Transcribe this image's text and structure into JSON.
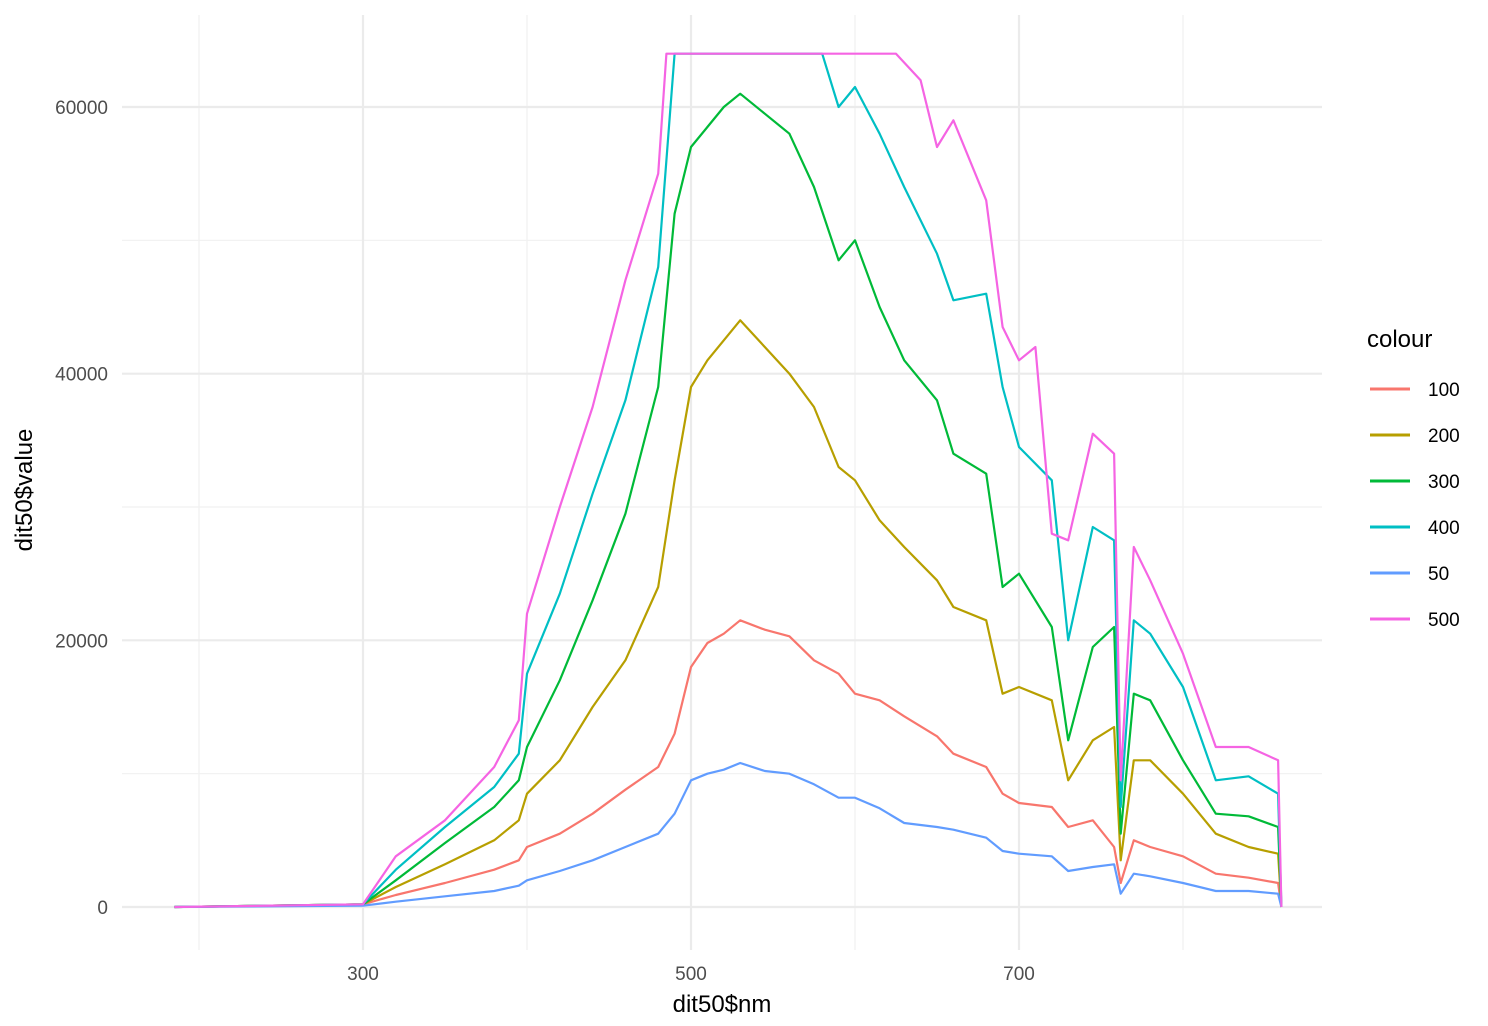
{
  "chart_data": {
    "type": "line",
    "title": "",
    "xlabel": "dit50$nm",
    "ylabel": "dit50$value",
    "xlim": [
      150,
      880
    ],
    "ylim": [
      -2000,
      65000
    ],
    "x_ticks": [
      300,
      500,
      700
    ],
    "y_ticks": [
      0,
      20000,
      40000,
      60000
    ],
    "x_ticks_labels": [
      "300",
      "500",
      "700"
    ],
    "y_ticks_labels": [
      "0",
      "20000",
      "40000",
      "60000"
    ],
    "grid": true,
    "legend_position": "right",
    "legend_title": "colour",
    "series": [
      {
        "name": "100",
        "color": "#F8766D",
        "points": [
          [
            185,
            0
          ],
          [
            300,
            200
          ],
          [
            320,
            900
          ],
          [
            350,
            1800
          ],
          [
            380,
            2800
          ],
          [
            395,
            3500
          ],
          [
            400,
            4500
          ],
          [
            420,
            5500
          ],
          [
            440,
            7000
          ],
          [
            460,
            8800
          ],
          [
            480,
            10500
          ],
          [
            490,
            13000
          ],
          [
            500,
            18000
          ],
          [
            510,
            19800
          ],
          [
            520,
            20500
          ],
          [
            530,
            21500
          ],
          [
            545,
            20800
          ],
          [
            560,
            20300
          ],
          [
            575,
            18500
          ],
          [
            590,
            17500
          ],
          [
            600,
            16000
          ],
          [
            615,
            15500
          ],
          [
            630,
            14300
          ],
          [
            650,
            12800
          ],
          [
            660,
            11500
          ],
          [
            680,
            10500
          ],
          [
            690,
            8500
          ],
          [
            700,
            7800
          ],
          [
            720,
            7500
          ],
          [
            730,
            6000
          ],
          [
            745,
            6500
          ],
          [
            758,
            4500
          ],
          [
            762,
            1800
          ],
          [
            770,
            5000
          ],
          [
            780,
            4500
          ],
          [
            800,
            3800
          ],
          [
            820,
            2500
          ],
          [
            840,
            2200
          ],
          [
            858,
            1800
          ],
          [
            860,
            0
          ]
        ]
      },
      {
        "name": "200",
        "color": "#B79F00",
        "points": [
          [
            185,
            0
          ],
          [
            300,
            200
          ],
          [
            320,
            1500
          ],
          [
            350,
            3200
          ],
          [
            380,
            5000
          ],
          [
            395,
            6500
          ],
          [
            400,
            8500
          ],
          [
            420,
            11000
          ],
          [
            440,
            15000
          ],
          [
            460,
            18500
          ],
          [
            480,
            24000
          ],
          [
            490,
            32000
          ],
          [
            500,
            39000
          ],
          [
            510,
            41000
          ],
          [
            520,
            42500
          ],
          [
            530,
            44000
          ],
          [
            545,
            42000
          ],
          [
            560,
            40000
          ],
          [
            575,
            37500
          ],
          [
            590,
            33000
          ],
          [
            600,
            32000
          ],
          [
            615,
            29000
          ],
          [
            630,
            27000
          ],
          [
            650,
            24500
          ],
          [
            660,
            22500
          ],
          [
            680,
            21500
          ],
          [
            690,
            16000
          ],
          [
            700,
            16500
          ],
          [
            720,
            15500
          ],
          [
            730,
            9500
          ],
          [
            745,
            12500
          ],
          [
            758,
            13500
          ],
          [
            762,
            3500
          ],
          [
            770,
            11000
          ],
          [
            780,
            11000
          ],
          [
            800,
            8500
          ],
          [
            820,
            5500
          ],
          [
            840,
            4500
          ],
          [
            858,
            4000
          ],
          [
            860,
            0
          ]
        ]
      },
      {
        "name": "300",
        "color": "#00BA38",
        "points": [
          [
            185,
            0
          ],
          [
            300,
            200
          ],
          [
            320,
            2000
          ],
          [
            350,
            4800
          ],
          [
            380,
            7500
          ],
          [
            395,
            9500
          ],
          [
            400,
            12000
          ],
          [
            420,
            17000
          ],
          [
            440,
            23000
          ],
          [
            460,
            29500
          ],
          [
            480,
            39000
          ],
          [
            490,
            52000
          ],
          [
            500,
            57000
          ],
          [
            510,
            58500
          ],
          [
            520,
            60000
          ],
          [
            530,
            61000
          ],
          [
            545,
            59500
          ],
          [
            560,
            58000
          ],
          [
            575,
            54000
          ],
          [
            590,
            48500
          ],
          [
            600,
            50000
          ],
          [
            615,
            45000
          ],
          [
            630,
            41000
          ],
          [
            650,
            38000
          ],
          [
            660,
            34000
          ],
          [
            680,
            32500
          ],
          [
            690,
            24000
          ],
          [
            700,
            25000
          ],
          [
            720,
            21000
          ],
          [
            730,
            12500
          ],
          [
            745,
            19500
          ],
          [
            758,
            21000
          ],
          [
            762,
            5500
          ],
          [
            770,
            16000
          ],
          [
            780,
            15500
          ],
          [
            800,
            11000
          ],
          [
            820,
            7000
          ],
          [
            840,
            6800
          ],
          [
            858,
            6000
          ],
          [
            860,
            0
          ]
        ]
      },
      {
        "name": "400",
        "color": "#00BFC4",
        "points": [
          [
            185,
            0
          ],
          [
            300,
            200
          ],
          [
            320,
            2800
          ],
          [
            350,
            6000
          ],
          [
            380,
            9000
          ],
          [
            395,
            11500
          ],
          [
            400,
            17500
          ],
          [
            420,
            23500
          ],
          [
            440,
            31000
          ],
          [
            460,
            38000
          ],
          [
            480,
            48000
          ],
          [
            490,
            64000
          ],
          [
            580,
            64000
          ],
          [
            590,
            60000
          ],
          [
            600,
            61500
          ],
          [
            615,
            58000
          ],
          [
            630,
            54000
          ],
          [
            650,
            49000
          ],
          [
            660,
            45500
          ],
          [
            680,
            46000
          ],
          [
            690,
            39000
          ],
          [
            700,
            34500
          ],
          [
            720,
            32000
          ],
          [
            730,
            20000
          ],
          [
            745,
            28500
          ],
          [
            758,
            27500
          ],
          [
            762,
            7500
          ],
          [
            770,
            21500
          ],
          [
            780,
            20500
          ],
          [
            800,
            16500
          ],
          [
            820,
            9500
          ],
          [
            840,
            9800
          ],
          [
            858,
            8500
          ],
          [
            860,
            0
          ]
        ]
      },
      {
        "name": "50",
        "color": "#619CFF",
        "points": [
          [
            185,
            0
          ],
          [
            300,
            100
          ],
          [
            320,
            400
          ],
          [
            350,
            800
          ],
          [
            380,
            1200
          ],
          [
            395,
            1600
          ],
          [
            400,
            2000
          ],
          [
            420,
            2700
          ],
          [
            440,
            3500
          ],
          [
            460,
            4500
          ],
          [
            480,
            5500
          ],
          [
            490,
            7000
          ],
          [
            500,
            9500
          ],
          [
            510,
            10000
          ],
          [
            520,
            10300
          ],
          [
            530,
            10800
          ],
          [
            545,
            10200
          ],
          [
            560,
            10000
          ],
          [
            575,
            9200
          ],
          [
            590,
            8200
          ],
          [
            600,
            8200
          ],
          [
            615,
            7400
          ],
          [
            630,
            6300
          ],
          [
            650,
            6000
          ],
          [
            660,
            5800
          ],
          [
            680,
            5200
          ],
          [
            690,
            4200
          ],
          [
            700,
            4000
          ],
          [
            720,
            3800
          ],
          [
            730,
            2700
          ],
          [
            745,
            3000
          ],
          [
            758,
            3200
          ],
          [
            762,
            1000
          ],
          [
            770,
            2500
          ],
          [
            780,
            2300
          ],
          [
            800,
            1800
          ],
          [
            820,
            1200
          ],
          [
            840,
            1200
          ],
          [
            858,
            1000
          ],
          [
            860,
            0
          ]
        ]
      },
      {
        "name": "500",
        "color": "#F564E3",
        "points": [
          [
            185,
            0
          ],
          [
            300,
            200
          ],
          [
            320,
            3800
          ],
          [
            350,
            6500
          ],
          [
            380,
            10500
          ],
          [
            395,
            14000
          ],
          [
            400,
            22000
          ],
          [
            420,
            30000
          ],
          [
            440,
            37500
          ],
          [
            460,
            47000
          ],
          [
            480,
            55000
          ],
          [
            485,
            64000
          ],
          [
            625,
            64000
          ],
          [
            640,
            62000
          ],
          [
            650,
            57000
          ],
          [
            660,
            59000
          ],
          [
            680,
            53000
          ],
          [
            690,
            43500
          ],
          [
            700,
            41000
          ],
          [
            710,
            42000
          ],
          [
            720,
            28000
          ],
          [
            730,
            27500
          ],
          [
            745,
            35500
          ],
          [
            758,
            34000
          ],
          [
            762,
            9500
          ],
          [
            770,
            27000
          ],
          [
            780,
            24500
          ],
          [
            800,
            19000
          ],
          [
            820,
            12000
          ],
          [
            840,
            12000
          ],
          [
            858,
            11000
          ],
          [
            860,
            0
          ]
        ]
      }
    ]
  }
}
